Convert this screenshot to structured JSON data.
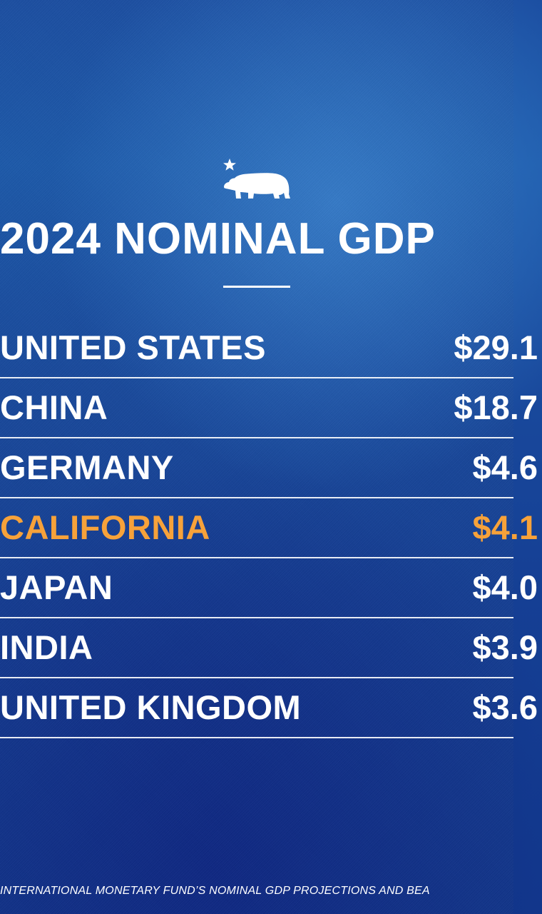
{
  "title": "2024 NOMINAL GDP",
  "highlight_color": "#f7a23a",
  "logo": {
    "icon": "california-bear-star-icon"
  },
  "rows": [
    {
      "name": "UNITED STATES",
      "value": "$29.1",
      "highlight": false
    },
    {
      "name": "CHINA",
      "value": "$18.7",
      "highlight": false
    },
    {
      "name": "GERMANY",
      "value": "$4.6",
      "highlight": false
    },
    {
      "name": "CALIFORNIA",
      "value": "$4.1",
      "highlight": true
    },
    {
      "name": "JAPAN",
      "value": "$4.0",
      "highlight": false
    },
    {
      "name": "INDIA",
      "value": "$3.9",
      "highlight": false
    },
    {
      "name": "UNITED KINGDOM",
      "value": "$3.6",
      "highlight": false
    }
  ],
  "source": "INTERNATIONAL MONETARY FUND’S NOMINAL GDP PROJECTIONS AND BEA"
}
